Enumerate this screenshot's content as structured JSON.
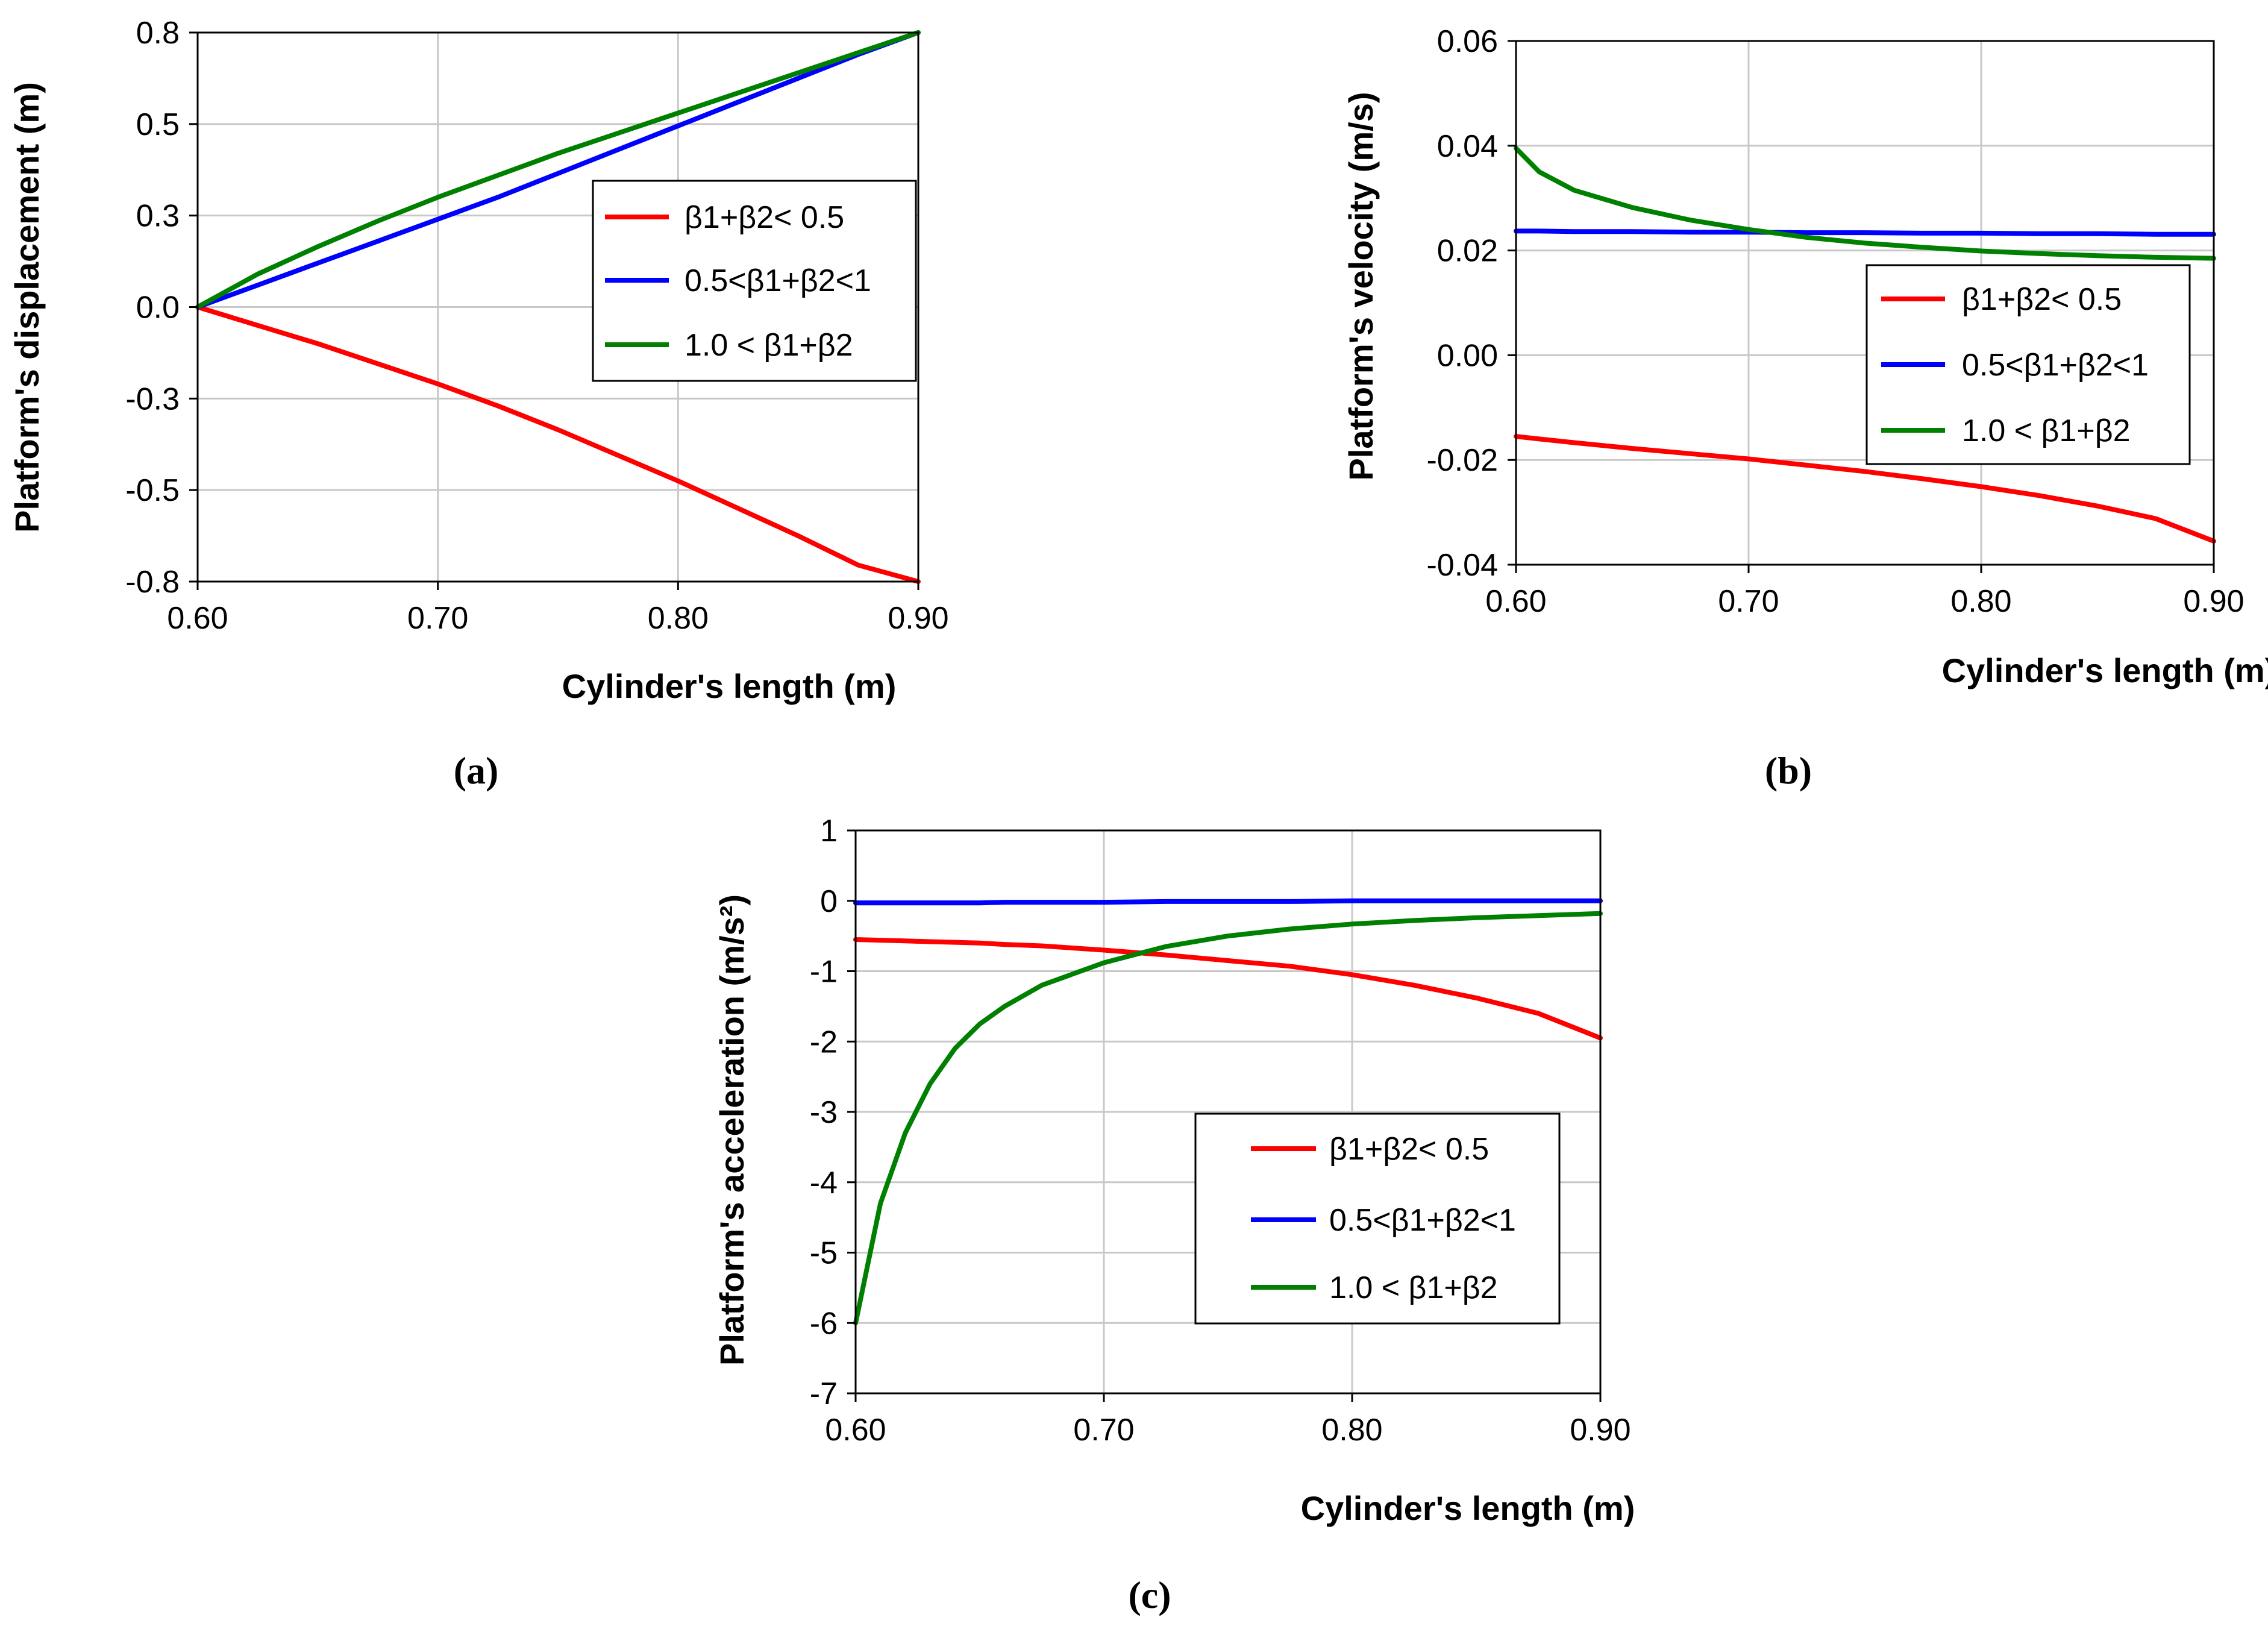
{
  "figure": {
    "captions": [
      "(a)",
      "(b)",
      "(c)"
    ]
  },
  "chart_data": [
    {
      "id": "a",
      "type": "line",
      "xlabel": "Cylinder's length (m)",
      "ylabel": "Platform's displacement  (m)",
      "xlim": [
        0.6,
        0.9
      ],
      "ylim": [
        -0.75,
        0.75
      ],
      "xticks": [
        0.6,
        0.7,
        0.8,
        0.9
      ],
      "xtick_labels": [
        "0.60",
        "0.70",
        "0.80",
        "0.90"
      ],
      "yticks": [
        0.75,
        0.5,
        0.25,
        0.0,
        -0.25,
        -0.5,
        -0.75
      ],
      "ytick_labels": [
        "0.8",
        "0.5",
        "0.3",
        "0.0",
        "-0.3",
        "-0.5",
        "-0.8"
      ],
      "x": [
        0.6,
        0.625,
        0.65,
        0.675,
        0.7,
        0.725,
        0.75,
        0.775,
        0.8,
        0.825,
        0.85,
        0.875,
        0.9
      ],
      "series": [
        {
          "name": "β1+β2 < 0.5",
          "color": "#ff0000",
          "values": [
            0.0,
            -0.05,
            -0.1,
            -0.155,
            -0.21,
            -0.27,
            -0.335,
            -0.405,
            -0.475,
            -0.55,
            -0.625,
            -0.705,
            -0.75
          ]
        },
        {
          "name": "0.5<β1+β2<1",
          "color": "#0000ff",
          "values": [
            0.0,
            0.06,
            0.12,
            0.18,
            0.24,
            0.3,
            0.365,
            0.43,
            0.495,
            0.56,
            0.625,
            0.69,
            0.75
          ]
        },
        {
          "name": "1.0 < β1+β2",
          "color": "#008000",
          "values": [
            0.0,
            0.09,
            0.165,
            0.235,
            0.3,
            0.36,
            0.42,
            0.475,
            0.53,
            0.585,
            0.64,
            0.695,
            0.75
          ]
        }
      ],
      "legend": [
        {
          "text": "β1+β2< 0.5",
          "color": "#ff0000"
        },
        {
          "text": "0.5<β1+β2<1",
          "color": "#0000ff"
        },
        {
          "text": "1.0 < β1+β2",
          "color": "#008000"
        }
      ]
    },
    {
      "id": "b",
      "type": "line",
      "xlabel": "Cylinder's length (m)",
      "ylabel": "Platform's velocity  (m/s)",
      "xlim": [
        0.6,
        0.9
      ],
      "ylim": [
        -0.04,
        0.06
      ],
      "xticks": [
        0.6,
        0.7,
        0.8,
        0.9
      ],
      "xtick_labels": [
        "0.60",
        "0.70",
        "0.80",
        "0.90"
      ],
      "yticks": [
        0.06,
        0.04,
        0.02,
        0.0,
        -0.02,
        -0.04
      ],
      "ytick_labels": [
        "0.06",
        "0.04",
        "0.02",
        "0.00",
        "-0.02",
        "-0.04"
      ],
      "x": [
        0.6,
        0.61,
        0.625,
        0.65,
        0.675,
        0.7,
        0.725,
        0.75,
        0.775,
        0.8,
        0.825,
        0.85,
        0.875,
        0.9
      ],
      "series": [
        {
          "name": "β1+β2 < 0.5",
          "color": "#ff0000",
          "values": [
            -0.0155,
            -0.016,
            -0.0167,
            -0.0178,
            -0.0188,
            -0.0198,
            -0.021,
            -0.0222,
            -0.0236,
            -0.0251,
            -0.0268,
            -0.0288,
            -0.0312,
            -0.0355
          ]
        },
        {
          "name": "0.5<β1+β2<1",
          "color": "#0000ff",
          "values": [
            0.0237,
            0.0237,
            0.0236,
            0.0236,
            0.0235,
            0.0235,
            0.0234,
            0.0234,
            0.0233,
            0.0233,
            0.0232,
            0.0232,
            0.0231,
            0.0231
          ]
        },
        {
          "name": "1.0 < β1+β2",
          "color": "#008000",
          "values": [
            0.0395,
            0.035,
            0.0315,
            0.0282,
            0.0258,
            0.024,
            0.0225,
            0.0214,
            0.0206,
            0.0199,
            0.0194,
            0.019,
            0.0187,
            0.0185
          ]
        }
      ],
      "legend": [
        {
          "text": "β1+β2< 0.5",
          "color": "#ff0000"
        },
        {
          "text": "0.5<β1+β2<1",
          "color": "#0000ff"
        },
        {
          "text": "1.0 < β1+β2",
          "color": "#008000"
        }
      ]
    },
    {
      "id": "c",
      "type": "line",
      "xlabel": "Cylinder's length (m)",
      "ylabel": "Platform's acceleration  (m/s²)",
      "xlim": [
        0.6,
        0.9
      ],
      "ylim": [
        -7,
        1
      ],
      "xticks": [
        0.6,
        0.7,
        0.8,
        0.9
      ],
      "xtick_labels": [
        "0.60",
        "0.70",
        "0.80",
        "0.90"
      ],
      "yticks": [
        1,
        0,
        -1,
        -2,
        -3,
        -4,
        -5,
        -6,
        -7
      ],
      "ytick_labels": [
        "1",
        "0",
        "-1",
        "-2",
        "-3",
        "-4",
        "-5",
        "-6",
        "-7"
      ],
      "x": [
        0.6,
        0.61,
        0.62,
        0.63,
        0.64,
        0.65,
        0.66,
        0.675,
        0.7,
        0.725,
        0.75,
        0.775,
        0.8,
        0.825,
        0.85,
        0.875,
        0.9
      ],
      "series": [
        {
          "name": "β1+β2 < 0.5",
          "color": "#ff0000",
          "values": [
            -0.55,
            -0.56,
            -0.57,
            -0.58,
            -0.59,
            -0.6,
            -0.62,
            -0.64,
            -0.7,
            -0.77,
            -0.85,
            -0.93,
            -1.05,
            -1.2,
            -1.38,
            -1.6,
            -1.95
          ]
        },
        {
          "name": "0.5<β1+β2<1",
          "color": "#0000ff",
          "values": [
            -0.03,
            -0.03,
            -0.03,
            -0.03,
            -0.03,
            -0.03,
            -0.02,
            -0.02,
            -0.02,
            -0.01,
            -0.01,
            -0.01,
            0.0,
            0.0,
            0.0,
            0.0,
            0.0
          ]
        },
        {
          "name": "1.0 < β1+β2",
          "color": "#008000",
          "values": [
            -6.0,
            -4.3,
            -3.3,
            -2.6,
            -2.1,
            -1.75,
            -1.5,
            -1.2,
            -0.88,
            -0.65,
            -0.5,
            -0.4,
            -0.33,
            -0.28,
            -0.24,
            -0.21,
            -0.18
          ]
        }
      ],
      "legend": [
        {
          "text": "β1+β2< 0.5",
          "color": "#ff0000"
        },
        {
          "text": "0.5<β1+β2<1",
          "color": "#0000ff"
        },
        {
          "text": "1.0 < β1+β2",
          "color": "#008000"
        }
      ]
    }
  ]
}
